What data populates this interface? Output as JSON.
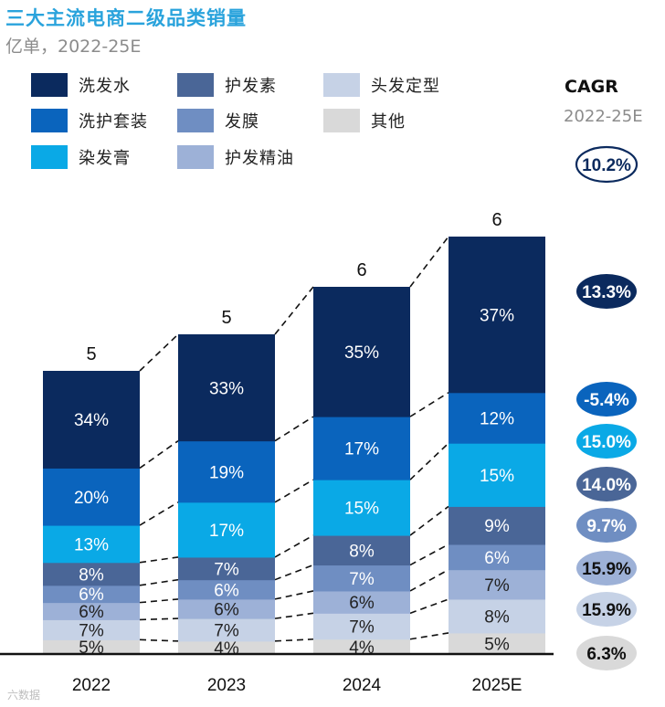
{
  "title": "三大主流电商二级品类销量",
  "subtitle": "亿单，2022-25E",
  "cagr_header": "CAGR",
  "cagr_period": "2022-25E",
  "watermark": "六数据",
  "legend": [
    {
      "label": "洗发水",
      "color": "#0b2a5e"
    },
    {
      "label": "护发素",
      "color": "#4a6697"
    },
    {
      "label": "头发定型",
      "color": "#c6d2e6"
    },
    {
      "label": "洗护套装",
      "color": "#0a64bd"
    },
    {
      "label": "发膜",
      "color": "#6f8ec2"
    },
    {
      "label": "其他",
      "color": "#d9d9d9"
    },
    {
      "label": "染发膏",
      "color": "#0aa9e6"
    },
    {
      "label": "护发精油",
      "color": "#9db1d7"
    }
  ],
  "chart_data": {
    "type": "bar",
    "stacked": true,
    "normalized": true,
    "categories": [
      "2022",
      "2023",
      "2024",
      "2025E"
    ],
    "totals": [
      5,
      5,
      6,
      6
    ],
    "series": [
      {
        "name": "其他",
        "color": "#d9d9d9",
        "text_color": "#222222",
        "values": [
          5,
          4,
          4,
          5
        ]
      },
      {
        "name": "头发定型",
        "color": "#c6d2e6",
        "text_color": "#222222",
        "values": [
          7,
          7,
          7,
          8
        ]
      },
      {
        "name": "护发精油",
        "color": "#9db1d7",
        "text_color": "#222222",
        "values": [
          6,
          6,
          6,
          7
        ]
      },
      {
        "name": "发膜",
        "color": "#6f8ec2",
        "text_color": "#ffffff",
        "values": [
          6,
          6,
          7,
          6
        ]
      },
      {
        "name": "护发素",
        "color": "#4a6697",
        "text_color": "#ffffff",
        "values": [
          8,
          7,
          8,
          9
        ]
      },
      {
        "name": "染发膏",
        "color": "#0aa9e6",
        "text_color": "#ffffff",
        "values": [
          13,
          17,
          15,
          15
        ]
      },
      {
        "name": "洗护套装",
        "color": "#0a64bd",
        "text_color": "#ffffff",
        "values": [
          20,
          19,
          17,
          12
        ]
      },
      {
        "name": "洗发水",
        "color": "#0b2a5e",
        "text_color": "#ffffff",
        "values": [
          34,
          33,
          35,
          37
        ]
      }
    ],
    "value_suffix": "%",
    "overall_cagr": "10.2%",
    "cagr": [
      {
        "series": "洗发水",
        "value": "13.3%",
        "fill": "#0b2a5e",
        "text": "#ffffff"
      },
      {
        "series": "洗护套装",
        "value": "-5.4%",
        "fill": "#0a64bd",
        "text": "#ffffff"
      },
      {
        "series": "染发膏",
        "value": "15.0%",
        "fill": "#0aa9e6",
        "text": "#ffffff"
      },
      {
        "series": "护发素",
        "value": "14.0%",
        "fill": "#4a6697",
        "text": "#ffffff"
      },
      {
        "series": "发膜",
        "value": "9.7%",
        "fill": "#6f8ec2",
        "text": "#ffffff"
      },
      {
        "series": "护发精油",
        "value": "15.9%",
        "fill": "#9db1d7",
        "text": "#111111"
      },
      {
        "series": "头发定型",
        "value": "15.9%",
        "fill": "#c6d2e6",
        "text": "#111111"
      },
      {
        "series": "其他",
        "value": "6.3%",
        "fill": "#d9d9d9",
        "text": "#111111"
      }
    ]
  }
}
